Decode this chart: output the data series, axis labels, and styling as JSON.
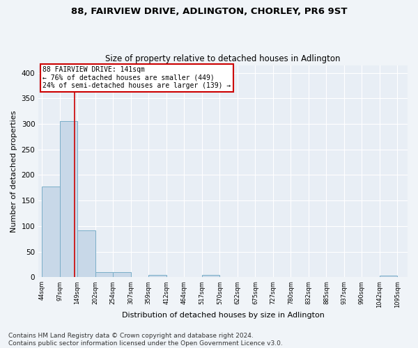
{
  "title1": "88, FAIRVIEW DRIVE, ADLINGTON, CHORLEY, PR6 9ST",
  "title2": "Size of property relative to detached houses in Adlington",
  "xlabel": "Distribution of detached houses by size in Adlington",
  "ylabel": "Number of detached properties",
  "footer1": "Contains HM Land Registry data © Crown copyright and database right 2024.",
  "footer2": "Contains public sector information licensed under the Open Government Licence v3.0.",
  "bin_edges": [
    44,
    97,
    149,
    202,
    254,
    307,
    359,
    412,
    464,
    517,
    570,
    622,
    675,
    727,
    780,
    832,
    885,
    937,
    990,
    1042,
    1095
  ],
  "bar_values": [
    178,
    305,
    91,
    10,
    10,
    0,
    4,
    0,
    0,
    5,
    0,
    0,
    0,
    0,
    0,
    0,
    0,
    0,
    0,
    3
  ],
  "bar_color": "#c8d8e8",
  "bar_edge_color": "#7aaec8",
  "vline_x": 141,
  "vline_color": "#cc0000",
  "annotation_text": "88 FAIRVIEW DRIVE: 141sqm\n← 76% of detached houses are smaller (449)\n24% of semi-detached houses are larger (139) →",
  "annotation_box_color": "white",
  "annotation_box_edge_color": "#cc0000",
  "ylim": [
    0,
    415
  ],
  "yticks": [
    0,
    50,
    100,
    150,
    200,
    250,
    300,
    350,
    400
  ],
  "bg_color": "#f0f4f8",
  "plot_bg_color": "#e8eef5",
  "grid_color": "white",
  "title1_fontsize": 9.5,
  "title2_fontsize": 8.5,
  "xlabel_fontsize": 8,
  "ylabel_fontsize": 8,
  "footer_fontsize": 6.5
}
